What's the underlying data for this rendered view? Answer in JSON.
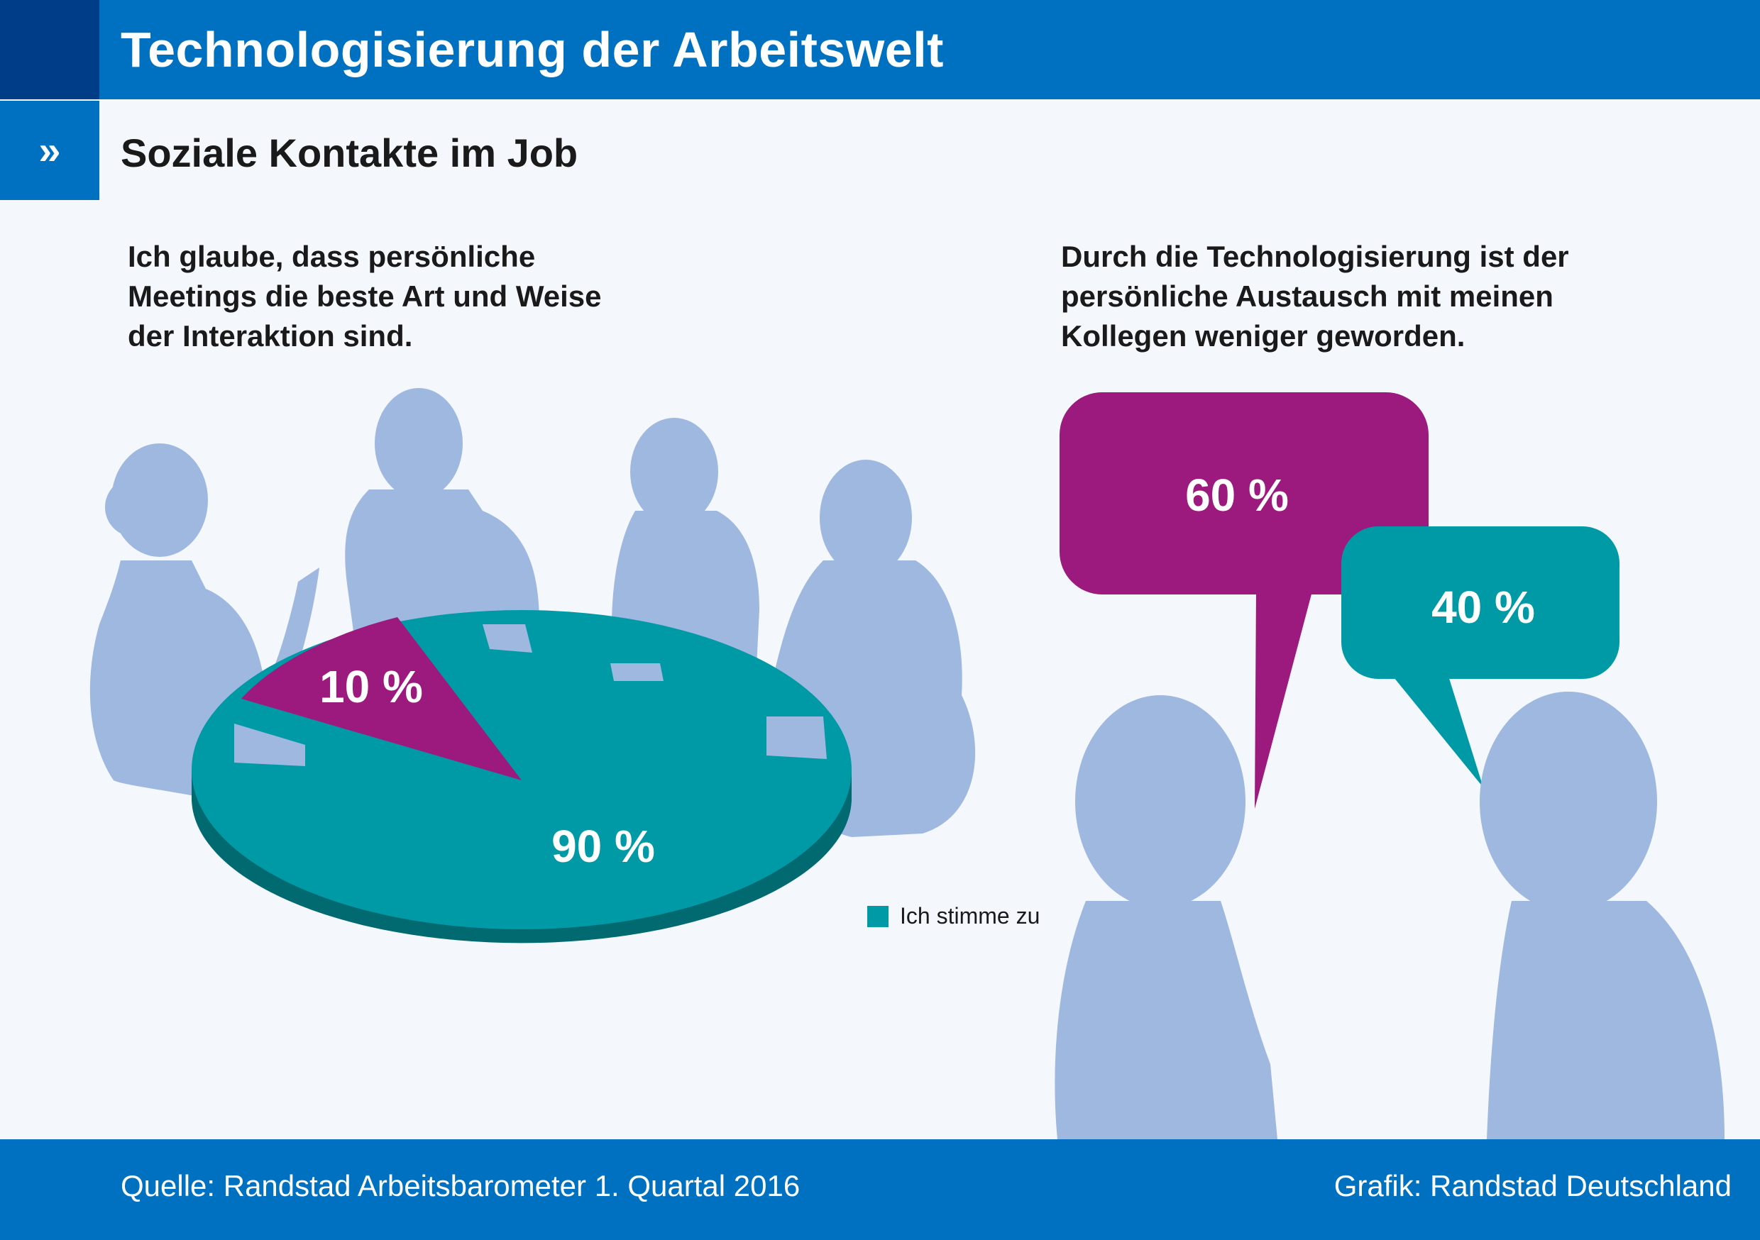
{
  "header": {
    "title": "Technologisierung der Arbeitswelt",
    "subtitle": "Soziale Kontakte im Job",
    "subtitle_marker": "»"
  },
  "colors": {
    "blue": "#0071c0",
    "dark_blue": "#003d89",
    "teal": "#009aa6",
    "teal_dark": "#006a70",
    "purple": "#9c1a7d",
    "silhouette": "#9fb8e0"
  },
  "chart_data": [
    {
      "type": "pie",
      "title": "Ich glaube, dass persönliche\nMeetings die beste Art und Weise\nder Interaktion sind.",
      "slices": [
        {
          "label": "Ich stimme zu",
          "value": 90,
          "display": "90 %",
          "color": "#009aa6"
        },
        {
          "label": "",
          "value": 10,
          "display": "10 %",
          "color": "#9c1a7d"
        }
      ],
      "legend": [
        "Ich stimme zu"
      ],
      "legend_position": "bottom-right"
    },
    {
      "type": "bar",
      "title": "Durch die Technologisierung ist der\npersönliche Austausch mit meinen\nKollegen weniger geworden.",
      "categories": [
        "",
        ""
      ],
      "values": [
        60,
        40
      ],
      "labels": [
        "60 %",
        "40 %"
      ],
      "colors": [
        "#9c1a7d",
        "#009aa6"
      ]
    }
  ],
  "footer": {
    "source": "Quelle: Randstad Arbeitsbarometer 1. Quartal 2016",
    "credit": "Grafik: Randstad Deutschland"
  }
}
